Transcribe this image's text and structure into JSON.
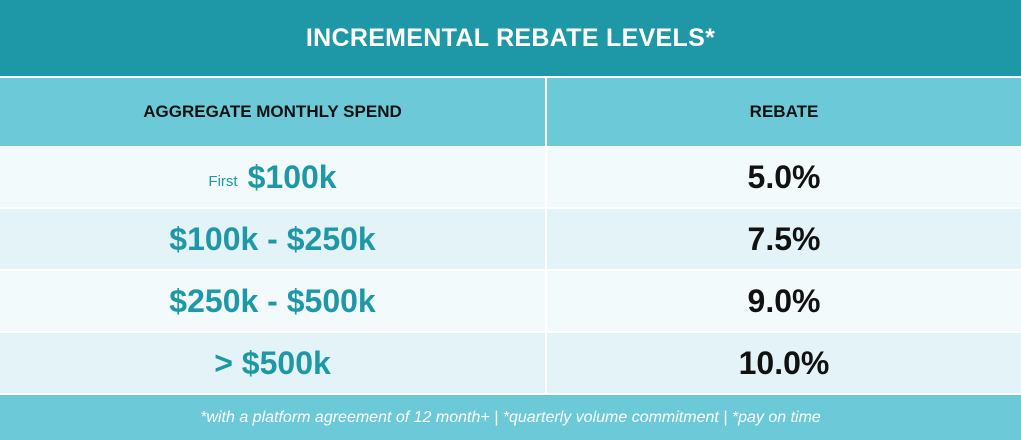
{
  "title": "INCREMENTAL REBATE LEVELS*",
  "headers": {
    "spend": "AGGREGATE MONTHLY SPEND",
    "rebate": "REBATE"
  },
  "rows": [
    {
      "prefix": "First",
      "spend": "$100k",
      "rebate": "5.0%"
    },
    {
      "prefix": "",
      "spend": "$100k - $250k",
      "rebate": "7.5%"
    },
    {
      "prefix": "",
      "spend": "$250k - $500k",
      "rebate": "9.0%"
    },
    {
      "prefix": "",
      "spend": "> $500k",
      "rebate": "10.0%"
    }
  ],
  "footer": "*with a platform agreement of 12 month+ | *quarterly volume commitment | *pay on time",
  "colors": {
    "title_bg": "#1e98a6",
    "header_bg": "#6ccad8",
    "spend_text": "#1e98a6"
  }
}
